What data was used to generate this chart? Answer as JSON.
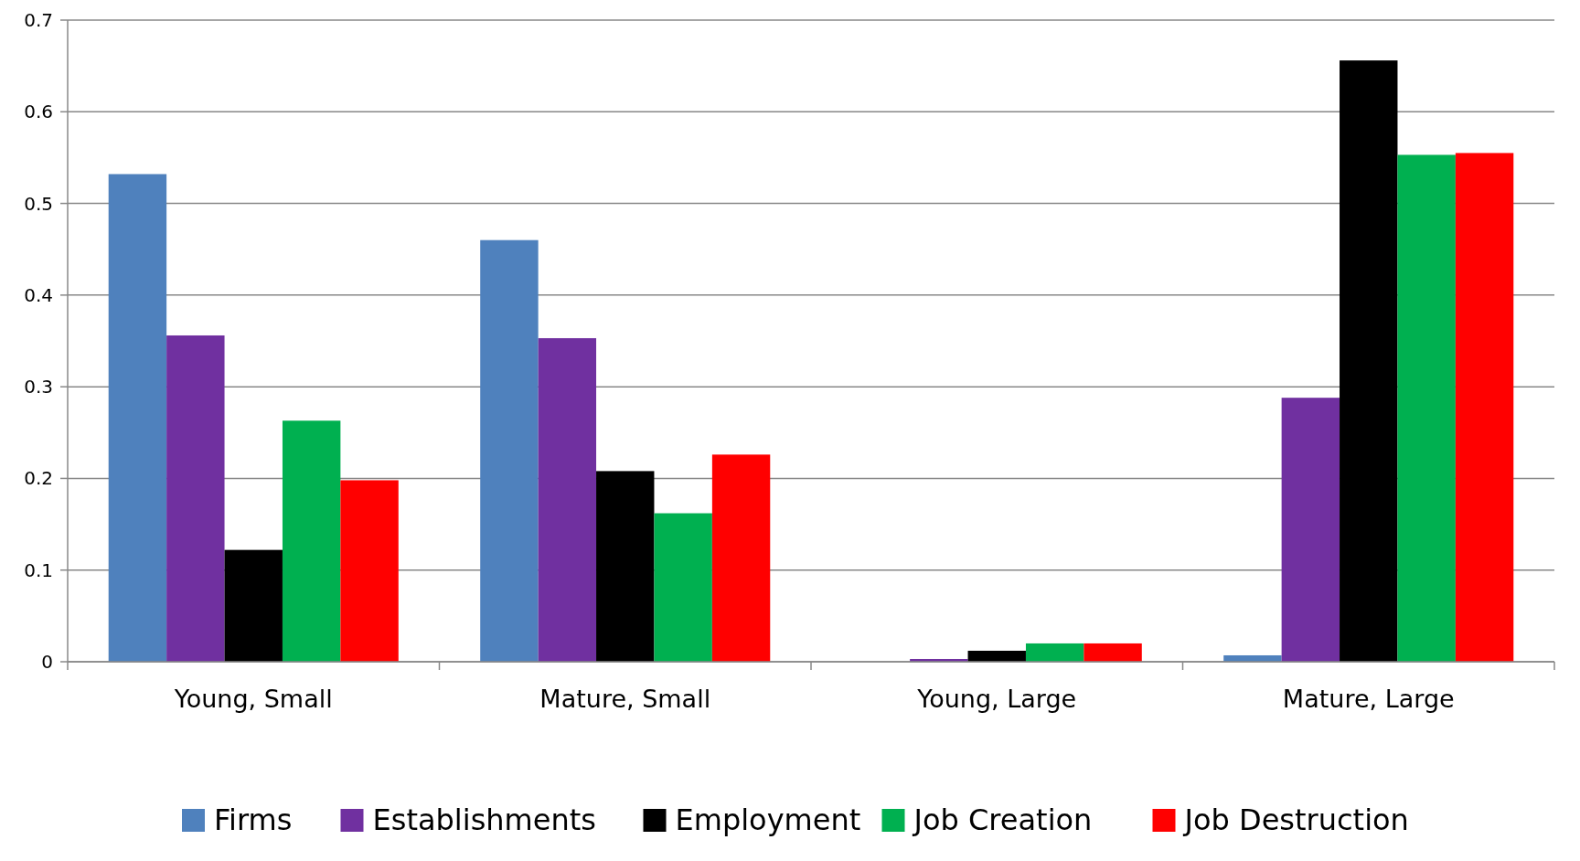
{
  "chart_data": {
    "type": "bar",
    "categories": [
      "Young, Small",
      "Mature, Small",
      "Young, Large",
      "Mature, Large"
    ],
    "series": [
      {
        "name": "Firms",
        "color": "#4f81bd",
        "values": [
          0.532,
          0.46,
          0,
          0.007
        ]
      },
      {
        "name": "Establishments",
        "color": "#7030a0",
        "values": [
          0.356,
          0.353,
          0.003,
          0.288
        ]
      },
      {
        "name": "Employment",
        "color": "#000000",
        "values": [
          0.122,
          0.208,
          0.012,
          0.656
        ]
      },
      {
        "name": "Job Creation",
        "color": "#00b050",
        "values": [
          0.263,
          0.162,
          0.02,
          0.553
        ]
      },
      {
        "name": "Job Destruction",
        "color": "#ff0000",
        "values": [
          0.198,
          0.226,
          0.02,
          0.555
        ]
      }
    ],
    "ylim": [
      0,
      0.7
    ],
    "yticks": [
      0,
      0.1,
      0.2,
      0.3,
      0.4,
      0.5,
      0.6,
      0.7
    ],
    "grid": "y",
    "legend": "bottom"
  }
}
